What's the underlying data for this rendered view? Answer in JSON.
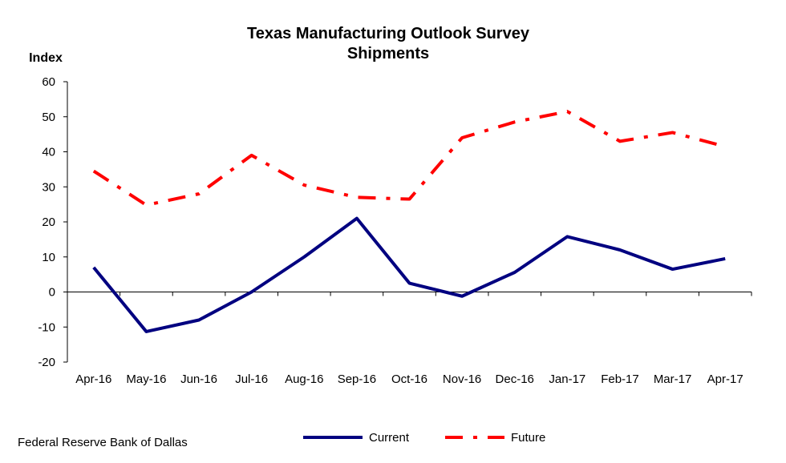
{
  "chart_data": {
    "type": "line",
    "title": "Texas Manufacturing Outlook Survey",
    "subtitle": "Shipments",
    "ylabel": "Index",
    "xlabel": "",
    "ylim": [
      -20,
      60
    ],
    "yticks": [
      -20,
      -10,
      0,
      10,
      20,
      30,
      40,
      50,
      60
    ],
    "grid": false,
    "legend_position": "bottom",
    "categories": [
      "Apr-16",
      "May-16",
      "Jun-16",
      "Jul-16",
      "Aug-16",
      "Sep-16",
      "Oct-16",
      "Nov-16",
      "Dec-16",
      "Jan-17",
      "Feb-17",
      "Mar-17",
      "Apr-17"
    ],
    "series": [
      {
        "name": "Current",
        "style": "solid",
        "color": "#000080",
        "values": [
          7.0,
          -11.3,
          -8.0,
          0.0,
          10.0,
          21.0,
          2.5,
          -1.2,
          5.6,
          15.8,
          12.0,
          6.5,
          9.5
        ]
      },
      {
        "name": "Future",
        "style": "dash-dot",
        "color": "#ff0000",
        "values": [
          34.5,
          24.8,
          28.0,
          39.0,
          30.5,
          27.0,
          26.5,
          44.0,
          48.5,
          51.5,
          43.0,
          45.5,
          41.5
        ]
      }
    ]
  },
  "source_note": "Federal Reserve Bank of Dallas"
}
